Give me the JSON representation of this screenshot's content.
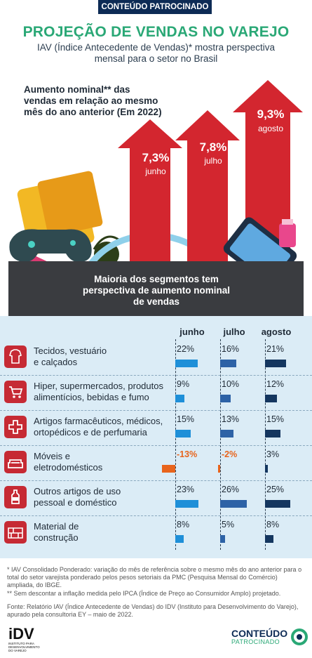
{
  "banner": "CONTEÚDO PATROCINADO",
  "title": "PROJEÇÃO DE VENDAS NO VAREJO",
  "subtitle": "IAV (Índice Antecedente de Vendas)* mostra perspectiva mensal para o setor no Brasil",
  "hero": {
    "label": "Aumento nominal** das vendas em relação ao mesmo mês do ano anterior (Em 2022)",
    "arrows": [
      {
        "value": "7,3%",
        "month": "junho"
      },
      {
        "value": "7,8%",
        "month": "julho"
      },
      {
        "value": "9,3%",
        "month": "agosto"
      }
    ],
    "segment_note": "Maioria dos segmentos tem perspectiva de aumento nominal de vendas"
  },
  "chart_data": {
    "type": "bar",
    "title": "PROJEÇÃO DE VENDAS NO VAREJO",
    "months": [
      "junho",
      "julho",
      "agosto"
    ],
    "overall": [
      7.3,
      7.8,
      9.3
    ],
    "segments": [
      {
        "name": "Tecidos, vestuário e calçados",
        "line1": "Tecidos, vestuário",
        "line2": "e calçados",
        "icon": "clothing-icon",
        "values": [
          22,
          16,
          21
        ],
        "labels": [
          "22%",
          "16%",
          "21%"
        ]
      },
      {
        "name": "Hiper, supermercados, produtos alimentícios, bebidas e fumo",
        "line1": "Hiper, supermercados, produtos",
        "line2": "alimentícios, bebidas e fumo",
        "icon": "shopping-cart-icon",
        "values": [
          9,
          10,
          12
        ],
        "labels": [
          "9%",
          "10%",
          "12%"
        ]
      },
      {
        "name": "Artigos farmacêuticos, médicos, ortopédicos e de perfumaria",
        "line1": "Artigos farmacêuticos, médicos,",
        "line2": "ortopédicos e de perfumaria",
        "icon": "medical-cross-icon",
        "values": [
          15,
          13,
          15
        ],
        "labels": [
          "15%",
          "13%",
          "15%"
        ]
      },
      {
        "name": "Móveis e eletrodomésticos",
        "line1": "Móveis e",
        "line2": "eletrodomésticos",
        "icon": "sofa-icon",
        "values": [
          -13,
          -2,
          3
        ],
        "labels": [
          "-13%",
          "-2%",
          "3%"
        ]
      },
      {
        "name": "Outros artigos de uso pessoal e doméstico",
        "line1": "Outros artigos de uso",
        "line2": "pessoal e doméstico",
        "icon": "bottle-icon",
        "values": [
          23,
          26,
          25
        ],
        "labels": [
          "23%",
          "26%",
          "25%"
        ]
      },
      {
        "name": "Material de construção",
        "line1": "Material de",
        "line2": "construção",
        "icon": "bricks-icon",
        "values": [
          8,
          5,
          8
        ],
        "labels": [
          "8%",
          "5%",
          "8%"
        ]
      }
    ],
    "colors": {
      "junho": "#1e8fd8",
      "julho": "#2d62a6",
      "agosto": "#14365f",
      "negative": "#e8641c",
      "positive_arrow": "#d3262f"
    }
  },
  "footnotes": {
    "f1": "* IAV Consolidado Ponderado: variação do mês de referência sobre o mesmo mês do ano anterior para o total do setor varejista ponderado pelos pesos setoriais da PMC (Pesquisa Mensal do Comércio) ampliada, do IBGE.",
    "f2": "** Sem descontar a inflação medida pelo IPCA (Índice de Preço ao Consumidor Amplo) projetado.",
    "source": "Fonte: Relatório IAV (Índice Antecedente de Vendas) do IDV (Instituto para Desenvolvimento do Varejo), apurado pela consultoria EY – maio de 2022."
  },
  "logos": {
    "idv": "iDV",
    "idv_sub": "INSTITUTO PARA DESENVOLVIMENTO DO VAREJO",
    "cp_line1": "CONTEÚDO",
    "cp_line2": "PATROCINADO"
  }
}
